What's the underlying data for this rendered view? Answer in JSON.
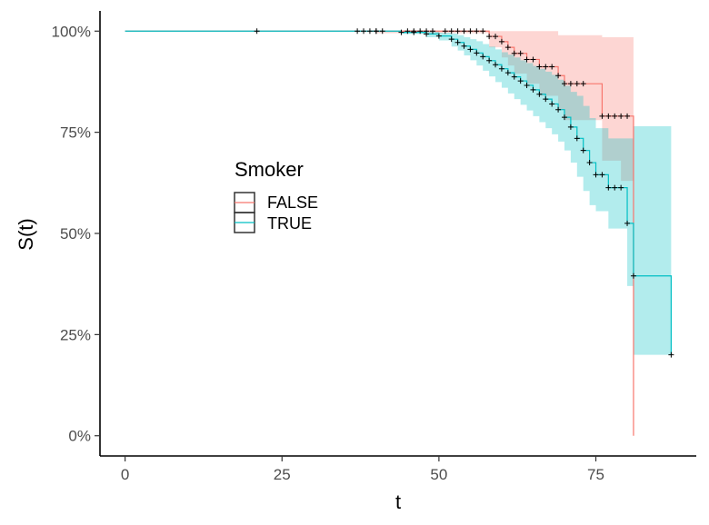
{
  "chart_data": {
    "type": "line",
    "subtype": "kaplan-meier-survival",
    "title": "",
    "xlabel": "t",
    "ylabel": "S(t)",
    "xlim": [
      -4,
      91
    ],
    "ylim": [
      -0.05,
      1.05
    ],
    "xticks": [
      0,
      25,
      50,
      75
    ],
    "xtick_labels": [
      "0",
      "25",
      "50",
      "75"
    ],
    "yticks": [
      0,
      0.25,
      0.5,
      0.75,
      1
    ],
    "ytick_labels": [
      "0%",
      "25%",
      "50%",
      "75%",
      "100%"
    ],
    "grid": false,
    "legend": {
      "title": "Smoker",
      "position": "inside-left",
      "entries": [
        "FALSE",
        "TRUE"
      ]
    },
    "series": [
      {
        "name": "FALSE",
        "color": "#F8766D",
        "fill": "#F8766D",
        "steps": [
          [
            0,
            1.0
          ],
          [
            58,
            0.987
          ],
          [
            60,
            0.974
          ],
          [
            61,
            0.96
          ],
          [
            62,
            0.945
          ],
          [
            64,
            0.93
          ],
          [
            66,
            0.912
          ],
          [
            69,
            0.89
          ],
          [
            70,
            0.87
          ],
          [
            76,
            0.79
          ],
          [
            81,
            0.75
          ],
          [
            81,
            0.0
          ]
        ],
        "lower": [
          [
            0,
            1.0
          ],
          [
            40,
            0.995
          ],
          [
            58,
            0.96
          ],
          [
            60,
            0.935
          ],
          [
            61,
            0.915
          ],
          [
            62,
            0.895
          ],
          [
            64,
            0.87
          ],
          [
            66,
            0.84
          ],
          [
            69,
            0.805
          ],
          [
            70,
            0.78
          ],
          [
            76,
            0.68
          ],
          [
            79,
            0.63
          ],
          [
            81,
            0.0
          ]
        ],
        "upper": [
          [
            0,
            1.0
          ],
          [
            58,
            1.0
          ],
          [
            69,
            0.99
          ],
          [
            76,
            0.985
          ],
          [
            81,
            0.985
          ]
        ],
        "censored": [
          [
            37,
            1.0
          ],
          [
            38,
            1.0
          ],
          [
            39,
            1.0
          ],
          [
            40,
            1.0
          ],
          [
            41,
            1.0
          ],
          [
            45,
            1.0
          ],
          [
            46,
            1.0
          ],
          [
            47,
            1.0
          ],
          [
            48,
            1.0
          ],
          [
            49,
            1.0
          ],
          [
            51,
            1.0
          ],
          [
            52,
            1.0
          ],
          [
            53,
            1.0
          ],
          [
            54,
            1.0
          ],
          [
            55,
            1.0
          ],
          [
            56,
            1.0
          ],
          [
            57,
            1.0
          ],
          [
            58,
            0.987
          ],
          [
            59,
            0.987
          ],
          [
            60,
            0.974
          ],
          [
            61,
            0.96
          ],
          [
            62,
            0.945
          ],
          [
            63,
            0.945
          ],
          [
            64,
            0.93
          ],
          [
            65,
            0.93
          ],
          [
            66,
            0.912
          ],
          [
            67,
            0.912
          ],
          [
            68,
            0.912
          ],
          [
            69,
            0.89
          ],
          [
            70,
            0.87
          ],
          [
            71,
            0.87
          ],
          [
            72,
            0.87
          ],
          [
            73,
            0.87
          ],
          [
            76,
            0.79
          ],
          [
            77,
            0.79
          ],
          [
            78,
            0.79
          ],
          [
            79,
            0.79
          ],
          [
            80,
            0.79
          ]
        ]
      },
      {
        "name": "TRUE",
        "color": "#00BFC4",
        "fill": "#00BFC4",
        "steps": [
          [
            0,
            1.0
          ],
          [
            44,
            0.997
          ],
          [
            48,
            0.993
          ],
          [
            50,
            0.988
          ],
          [
            52,
            0.98
          ],
          [
            53,
            0.972
          ],
          [
            54,
            0.963
          ],
          [
            55,
            0.955
          ],
          [
            56,
            0.946
          ],
          [
            57,
            0.937
          ],
          [
            58,
            0.927
          ],
          [
            59,
            0.917
          ],
          [
            60,
            0.907
          ],
          [
            61,
            0.897
          ],
          [
            62,
            0.887
          ],
          [
            63,
            0.877
          ],
          [
            64,
            0.866
          ],
          [
            65,
            0.855
          ],
          [
            66,
            0.844
          ],
          [
            67,
            0.832
          ],
          [
            68,
            0.82
          ],
          [
            69,
            0.806
          ],
          [
            70,
            0.787
          ],
          [
            71,
            0.763
          ],
          [
            72,
            0.735
          ],
          [
            73,
            0.705
          ],
          [
            74,
            0.675
          ],
          [
            75,
            0.645
          ],
          [
            77,
            0.613
          ],
          [
            80,
            0.525
          ],
          [
            81,
            0.395
          ],
          [
            87,
            0.2
          ]
        ],
        "lower": [
          [
            0,
            1.0
          ],
          [
            44,
            0.993
          ],
          [
            48,
            0.985
          ],
          [
            50,
            0.977
          ],
          [
            52,
            0.962
          ],
          [
            53,
            0.952
          ],
          [
            54,
            0.94
          ],
          [
            55,
            0.928
          ],
          [
            56,
            0.915
          ],
          [
            57,
            0.902
          ],
          [
            58,
            0.888
          ],
          [
            59,
            0.874
          ],
          [
            60,
            0.86
          ],
          [
            61,
            0.846
          ],
          [
            62,
            0.832
          ],
          [
            63,
            0.818
          ],
          [
            64,
            0.804
          ],
          [
            65,
            0.79
          ],
          [
            66,
            0.775
          ],
          [
            67,
            0.76
          ],
          [
            68,
            0.745
          ],
          [
            69,
            0.727
          ],
          [
            70,
            0.705
          ],
          [
            71,
            0.675
          ],
          [
            72,
            0.64
          ],
          [
            73,
            0.605
          ],
          [
            74,
            0.57
          ],
          [
            75,
            0.555
          ],
          [
            77,
            0.512
          ],
          [
            80,
            0.37
          ],
          [
            81,
            0.2
          ],
          [
            87,
            0.2
          ]
        ],
        "upper": [
          [
            0,
            1.0
          ],
          [
            44,
            1.0
          ],
          [
            50,
            0.996
          ],
          [
            52,
            0.994
          ],
          [
            53,
            0.99
          ],
          [
            54,
            0.985
          ],
          [
            55,
            0.98
          ],
          [
            56,
            0.975
          ],
          [
            57,
            0.968
          ],
          [
            58,
            0.962
          ],
          [
            59,
            0.955
          ],
          [
            60,
            0.948
          ],
          [
            61,
            0.942
          ],
          [
            62,
            0.935
          ],
          [
            63,
            0.928
          ],
          [
            64,
            0.921
          ],
          [
            65,
            0.914
          ],
          [
            66,
            0.907
          ],
          [
            67,
            0.9
          ],
          [
            68,
            0.892
          ],
          [
            69,
            0.88
          ],
          [
            70,
            0.865
          ],
          [
            71,
            0.85
          ],
          [
            72,
            0.84
          ],
          [
            73,
            0.815
          ],
          [
            74,
            0.785
          ],
          [
            75,
            0.76
          ],
          [
            77,
            0.735
          ],
          [
            80,
            0.735
          ],
          [
            81,
            0.765
          ],
          [
            87,
            0.765
          ]
        ],
        "censored": [
          [
            21,
            1.0
          ],
          [
            40,
            1.0
          ],
          [
            44,
            0.997
          ],
          [
            46,
            0.997
          ],
          [
            48,
            0.993
          ],
          [
            50,
            0.988
          ],
          [
            52,
            0.98
          ],
          [
            53,
            0.972
          ],
          [
            54,
            0.963
          ],
          [
            55,
            0.955
          ],
          [
            56,
            0.946
          ],
          [
            57,
            0.937
          ],
          [
            58,
            0.927
          ],
          [
            59,
            0.917
          ],
          [
            60,
            0.907
          ],
          [
            61,
            0.897
          ],
          [
            62,
            0.887
          ],
          [
            63,
            0.877
          ],
          [
            64,
            0.866
          ],
          [
            65,
            0.855
          ],
          [
            66,
            0.844
          ],
          [
            67,
            0.832
          ],
          [
            68,
            0.82
          ],
          [
            69,
            0.806
          ],
          [
            70,
            0.787
          ],
          [
            71,
            0.763
          ],
          [
            72,
            0.735
          ],
          [
            73,
            0.705
          ],
          [
            74,
            0.675
          ],
          [
            75,
            0.645
          ],
          [
            76,
            0.645
          ],
          [
            77,
            0.613
          ],
          [
            78,
            0.613
          ],
          [
            79,
            0.613
          ],
          [
            80,
            0.525
          ],
          [
            81,
            0.395
          ],
          [
            87,
            0.2
          ]
        ]
      }
    ]
  }
}
